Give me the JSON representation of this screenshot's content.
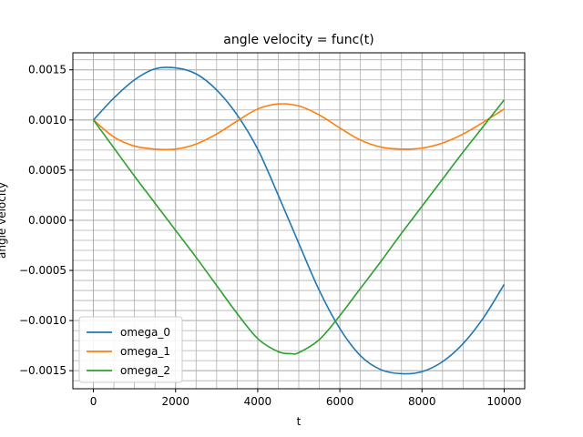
{
  "chart_data": {
    "type": "line",
    "title": "angle velocity = func(t)",
    "xlabel": "t",
    "ylabel": "angle velocity",
    "xlim": [
      -500,
      10500
    ],
    "ylim": [
      -0.00168,
      0.00167
    ],
    "x_ticks": [
      0,
      2000,
      4000,
      6000,
      8000,
      10000
    ],
    "x_tick_labels": [
      "0",
      "2000",
      "4000",
      "6000",
      "8000",
      "10000"
    ],
    "y_ticks": [
      -0.0015,
      -0.001,
      -0.0005,
      0.0,
      0.0005,
      0.001,
      0.0015
    ],
    "y_tick_labels": [
      "−0.0015",
      "−0.0010",
      "−0.0005",
      "0.0000",
      "0.0005",
      "0.0010",
      "0.0015"
    ],
    "grid": true,
    "minor_grid": true,
    "legend_placement": "lower-left",
    "series": [
      {
        "name": "omega_0",
        "color": "#1f77b4",
        "x": [
          0,
          500,
          1000,
          1500,
          2000,
          2500,
          3000,
          3500,
          4000,
          4500,
          5000,
          5500,
          6000,
          6500,
          7000,
          7500,
          8000,
          8500,
          9000,
          9500,
          10000
        ],
        "y": [
          0.001,
          0.00122,
          0.0014,
          0.00151,
          0.00152,
          0.00146,
          0.0013,
          0.00105,
          0.00071,
          0.00025,
          -0.00023,
          -0.0007,
          -0.00108,
          -0.00135,
          -0.00149,
          -0.00153,
          -0.00151,
          -0.00141,
          -0.00123,
          -0.00097,
          -0.00064
        ]
      },
      {
        "name": "omega_1",
        "color": "#ff7f0e",
        "x": [
          0,
          500,
          1000,
          1500,
          2000,
          2500,
          3000,
          3500,
          4000,
          4500,
          5000,
          5500,
          6000,
          6500,
          7000,
          7500,
          8000,
          8500,
          9000,
          9500,
          10000
        ],
        "y": [
          0.001,
          0.00083,
          0.00074,
          0.00071,
          0.00071,
          0.00076,
          0.00086,
          0.00099,
          0.00111,
          0.00116,
          0.00114,
          0.00105,
          0.00092,
          0.0008,
          0.00073,
          0.00071,
          0.00072,
          0.00077,
          0.00086,
          0.00098,
          0.00111
        ]
      },
      {
        "name": "omega_2",
        "color": "#2ca02c",
        "x": [
          0,
          500,
          1000,
          1500,
          2000,
          2500,
          3000,
          3500,
          4000,
          4500,
          4800,
          5000,
          5500,
          6000,
          6500,
          7000,
          7500,
          8000,
          8500,
          9000,
          9500,
          10000
        ],
        "y": [
          0.001,
          0.00072,
          0.00044,
          0.00017,
          -0.0001,
          -0.00037,
          -0.00065,
          -0.00093,
          -0.00118,
          -0.00131,
          -0.00133,
          -0.00132,
          -0.00119,
          -0.00095,
          -0.00068,
          -0.00041,
          -0.00013,
          0.00014,
          0.00041,
          0.00068,
          0.00094,
          0.0012
        ]
      }
    ]
  }
}
